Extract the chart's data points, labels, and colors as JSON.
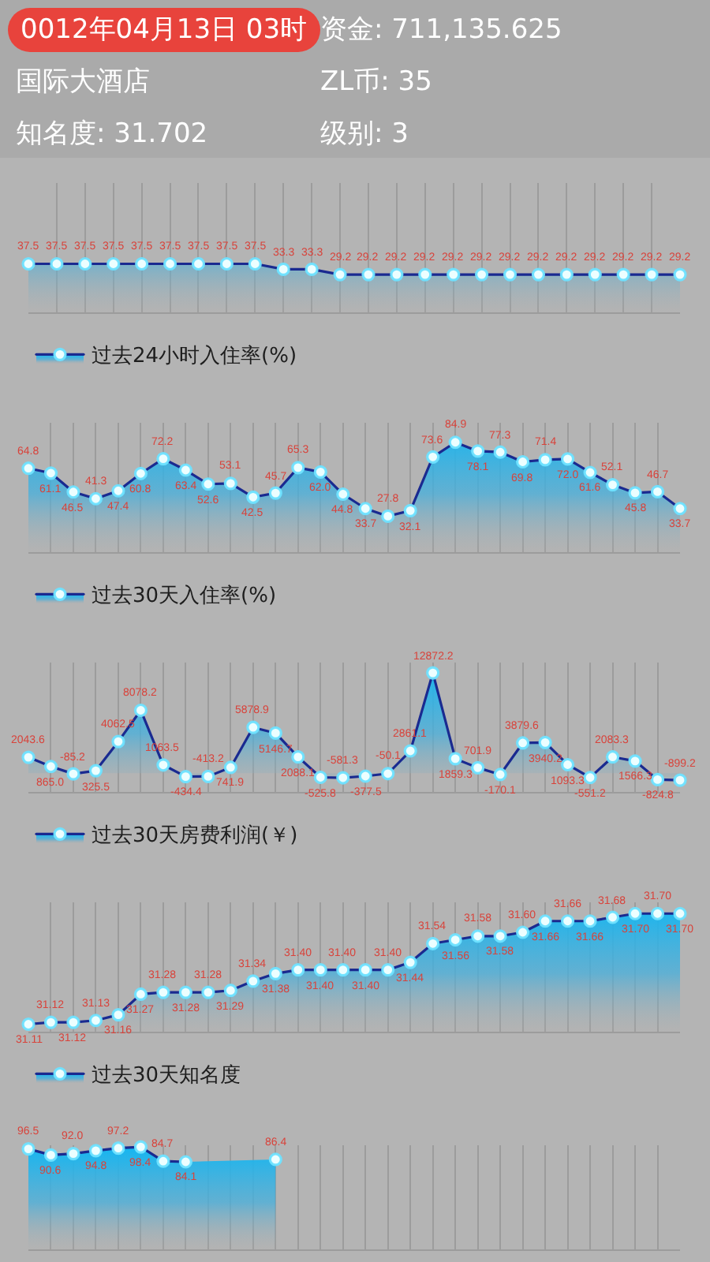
{
  "chart_data": [
    {
      "type": "other",
      "annotations": [
        "0012年04月13日 03时",
        "资金: 711,135.625",
        "国际大酒店",
        "ZL币: 35",
        "知名度: 31.702",
        "级别: 3"
      ]
    },
    {
      "type": "area",
      "categories": [
        null,
        null,
        null,
        null,
        null,
        null,
        null,
        null,
        null,
        null,
        null,
        null,
        null,
        null,
        null,
        null,
        null,
        null,
        null,
        null,
        null,
        null,
        null,
        null
      ],
      "series": [
        {
          "name": "过去24小时入住率(%)",
          "color": "#1a2a90",
          "values": [
            37.5,
            37.5,
            37.5,
            37.5,
            37.5,
            37.5,
            37.5,
            37.5,
            37.5,
            33.3,
            33.3,
            29.2,
            29.2,
            29.2,
            29.2,
            29.2,
            29.2,
            29.2,
            29.2,
            29.2,
            29.2,
            29.2,
            29.2,
            29.2
          ],
          "value_labels": [
            "37.5",
            "37.5",
            "37.5",
            "37.5",
            "37.5",
            "37.5",
            "37.5",
            "37.5",
            "37.5",
            "33.3",
            "33.3",
            "29.2",
            "29.2",
            "29.2",
            "29.2",
            "29.2",
            "29.2",
            "29.2",
            "29.2",
            "29.2",
            "29.2",
            "29.2",
            "29.2",
            "29.2"
          ]
        }
      ],
      "ylim": [
        0,
        100
      ],
      "tick_labels": false,
      "grid": "x",
      "legend": "bottom left",
      "marker": "circle"
    },
    {
      "type": "area",
      "categories": [
        null,
        null,
        null,
        null,
        null,
        null,
        null,
        null,
        null,
        null,
        null,
        null,
        null,
        null,
        null,
        null,
        null,
        null,
        null,
        null,
        null,
        null,
        null,
        null,
        null,
        null,
        null,
        null,
        null,
        null
      ],
      "series": [
        {
          "name": "过去30天入住率(%)",
          "color": "#1a2a90",
          "values": [
            64.8,
            61.1,
            46.5,
            41.3,
            47.4,
            60.8,
            72.2,
            63.4,
            52.6,
            53.1,
            42.5,
            45.7,
            65.3,
            62.0,
            44.8,
            33.7,
            27.8,
            32.1,
            73.6,
            84.9,
            78.1,
            77.3,
            69.8,
            71.4,
            72.0,
            61.6,
            52.1,
            45.8,
            46.7,
            33.7
          ],
          "value_labels": [
            "64.8",
            "61.1",
            "46.5",
            "41.3",
            "47.4",
            "60.8",
            "72.2",
            "63.4",
            "52.6",
            "53.1",
            "42.5",
            "45.7",
            "65.3",
            "62.0",
            "44.8",
            "33.7",
            "27.8",
            "32.1",
            "73.6",
            "84.9",
            "78.1",
            "77.3",
            "69.8",
            "71.4",
            "72.0",
            "61.6",
            "52.1",
            "45.8",
            "46.7",
            "33.7"
          ]
        }
      ],
      "ylim": [
        0,
        100
      ],
      "tick_labels": false,
      "grid": "x",
      "legend": "bottom left",
      "marker": "circle"
    },
    {
      "type": "area",
      "categories": [
        null,
        null,
        null,
        null,
        null,
        null,
        null,
        null,
        null,
        null,
        null,
        null,
        null,
        null,
        null,
        null,
        null,
        null,
        null,
        null,
        null,
        null,
        null,
        null,
        null,
        null,
        null,
        null,
        null,
        null
      ],
      "series": [
        {
          "name": "过去30天房费利润(￥)",
          "color": "#1a2a90",
          "values": [
            2043.6,
            865.0,
            -85.2,
            325.5,
            4062.5,
            8078.2,
            1063.5,
            -434.4,
            -413.2,
            741.9,
            5878.9,
            5146.7,
            2088.1,
            -525.8,
            -581.3,
            -377.5,
            -50.1,
            2861.1,
            12872.2,
            1859.3,
            701.9,
            -170.1,
            3879.6,
            3940.2,
            1093.3,
            -551.2,
            2083.3,
            1566.3,
            -824.8,
            -899.2
          ],
          "value_labels": [
            "2043.6",
            "865.0",
            "-85.2",
            "325.5",
            "4062.5",
            "8078.2",
            "1063.5",
            "-434.4",
            "-413.2",
            "741.9",
            "5878.9",
            "5146.7",
            "2088.1",
            "-525.8",
            "-581.3",
            "-377.5",
            "-50.1",
            "2861.1",
            "12872.2",
            "1859.3",
            "701.9",
            "-170.1",
            "3879.6",
            "3940.2",
            "1093.3",
            "-551.2",
            "2083.3",
            "1566.3",
            "-824.8",
            "-899.2"
          ]
        }
      ],
      "ylim": [
        -2400,
        14200
      ],
      "tick_labels": false,
      "grid": "x",
      "legend": "bottom left",
      "marker": "circle"
    },
    {
      "type": "area",
      "categories": [
        null,
        null,
        null,
        null,
        null,
        null,
        null,
        null,
        null,
        null,
        null,
        null,
        null,
        null,
        null,
        null,
        null,
        null,
        null,
        null,
        null,
        null,
        null,
        null,
        null,
        null,
        null,
        null,
        null,
        null
      ],
      "series": [
        {
          "name": "过去30天知名度",
          "color": "#1a2a90",
          "values": [
            31.11,
            31.12,
            31.12,
            31.13,
            31.16,
            31.27,
            31.28,
            31.28,
            31.28,
            31.29,
            31.34,
            31.38,
            31.4,
            31.4,
            31.4,
            31.4,
            31.4,
            31.44,
            31.54,
            31.56,
            31.58,
            31.58,
            31.6,
            31.66,
            31.66,
            31.66,
            31.68,
            31.7,
            31.7,
            31.7
          ],
          "value_labels": [
            "31.11",
            "31.12",
            "31.12",
            "31.13",
            "31.16",
            "31.27",
            "31.28",
            "31.28",
            "31.28",
            "31.29",
            "31.34",
            "31.38",
            "31.40",
            "31.40",
            "31.40",
            "31.40",
            "31.40",
            "31.44",
            "31.54",
            "31.56",
            "31.58",
            "31.58",
            "31.60",
            "31.66",
            "31.66",
            "31.66",
            "31.68",
            "31.70",
            "31.70",
            "31.70"
          ]
        }
      ],
      "ylim": [
        31.07,
        31.76
      ],
      "tick_labels": false,
      "grid": "x",
      "legend": "bottom left",
      "marker": "circle"
    },
    {
      "type": "area",
      "categories": [
        null,
        null,
        null,
        null,
        null,
        null,
        null,
        null,
        null,
        null,
        null,
        null,
        null,
        null,
        null,
        null,
        null,
        null,
        null,
        null,
        null,
        null,
        null,
        null,
        null,
        null,
        null,
        null,
        null,
        null
      ],
      "series": [
        {
          "color": "#1a2a90",
          "values": [
            96.5,
            90.6,
            92.0,
            94.8,
            97.2,
            98.4,
            84.7,
            84.1,
            null,
            null,
            null,
            86.4,
            null,
            null,
            null,
            null,
            null,
            null,
            null,
            null,
            null,
            null,
            null,
            null,
            null,
            null,
            null,
            null,
            null,
            null
          ],
          "value_labels": [
            "96.5",
            "90.6",
            "92.0",
            "94.8",
            "97.2",
            "98.4",
            "84.7",
            "84.1",
            null,
            null,
            null,
            "86.4",
            null,
            null,
            null,
            null,
            null,
            null,
            null,
            null,
            null,
            null,
            null,
            null,
            null,
            null,
            null,
            null,
            null,
            null
          ]
        }
      ],
      "ylim": [
        0,
        100
      ],
      "tick_labels": false,
      "grid": "x",
      "marker": "circle"
    }
  ]
}
